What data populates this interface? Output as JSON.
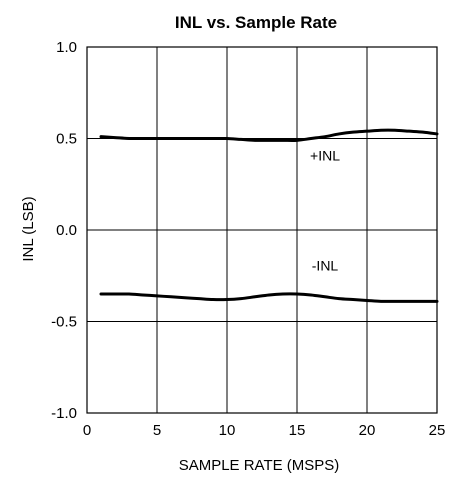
{
  "chart_data": {
    "type": "line",
    "title": "INL vs. Sample Rate",
    "xlabel": "SAMPLE RATE (MSPS)",
    "ylabel": "INL (LSB)",
    "xlim": [
      0,
      25
    ],
    "ylim": [
      -1.0,
      1.0
    ],
    "xticks": [
      0,
      5,
      10,
      15,
      20,
      25
    ],
    "xtick_labels": [
      "0",
      "5",
      "10",
      "15",
      "20",
      "25"
    ],
    "yticks": [
      1.0,
      0.5,
      0.0,
      -0.5,
      -1.0
    ],
    "ytick_labels": [
      "1.0",
      "0.5",
      "0.0",
      "-0.5",
      "-1.0"
    ],
    "grid": true,
    "series": [
      {
        "name": "+INL",
        "x": [
          1,
          2,
          3,
          4,
          5,
          6,
          7,
          8,
          9,
          10,
          11,
          12,
          13,
          14,
          15,
          16,
          17,
          18,
          19,
          20,
          21,
          22,
          23,
          24,
          25
        ],
        "y": [
          0.51,
          0.505,
          0.5,
          0.5,
          0.5,
          0.5,
          0.5,
          0.5,
          0.5,
          0.5,
          0.495,
          0.49,
          0.49,
          0.49,
          0.49,
          0.5,
          0.51,
          0.525,
          0.535,
          0.54,
          0.545,
          0.545,
          0.54,
          0.535,
          0.525
        ]
      },
      {
        "name": "-INL",
        "x": [
          1,
          2,
          3,
          4,
          5,
          6,
          7,
          8,
          9,
          10,
          11,
          12,
          13,
          14,
          15,
          16,
          17,
          18,
          19,
          20,
          21,
          22,
          23,
          24,
          25
        ],
        "y": [
          -0.35,
          -0.35,
          -0.35,
          -0.355,
          -0.36,
          -0.365,
          -0.37,
          -0.375,
          -0.38,
          -0.38,
          -0.375,
          -0.365,
          -0.355,
          -0.35,
          -0.35,
          -0.355,
          -0.365,
          -0.375,
          -0.38,
          -0.385,
          -0.39,
          -0.39,
          -0.39,
          -0.39,
          -0.39
        ]
      }
    ],
    "annotations": [
      {
        "text": "+INL",
        "x": 17,
        "y": 0.38
      },
      {
        "text": "-INL",
        "x": 17,
        "y": -0.22
      }
    ]
  }
}
